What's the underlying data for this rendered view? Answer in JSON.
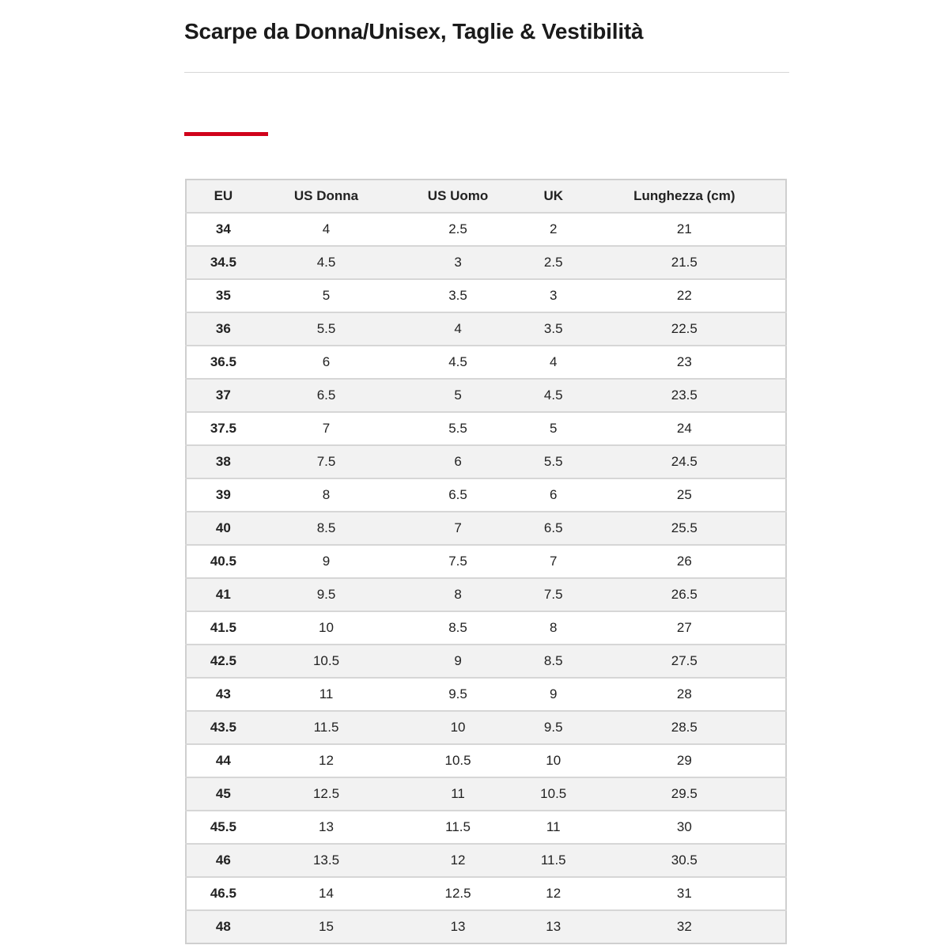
{
  "page": {
    "title": "Scarpe da Donna/Unisex, Taglie & Vestibilità",
    "accent_color": "#d0021b"
  },
  "table": {
    "headers": [
      "EU",
      "US Donna",
      "US Uomo",
      "UK",
      "Lunghezza (cm)"
    ],
    "rows": [
      [
        "34",
        "4",
        "2.5",
        "2",
        "21"
      ],
      [
        "34.5",
        "4.5",
        "3",
        "2.5",
        "21.5"
      ],
      [
        "35",
        "5",
        "3.5",
        "3",
        "22"
      ],
      [
        "36",
        "5.5",
        "4",
        "3.5",
        "22.5"
      ],
      [
        "36.5",
        "6",
        "4.5",
        "4",
        "23"
      ],
      [
        "37",
        "6.5",
        "5",
        "4.5",
        "23.5"
      ],
      [
        "37.5",
        "7",
        "5.5",
        "5",
        "24"
      ],
      [
        "38",
        "7.5",
        "6",
        "5.5",
        "24.5"
      ],
      [
        "39",
        "8",
        "6.5",
        "6",
        "25"
      ],
      [
        "40",
        "8.5",
        "7",
        "6.5",
        "25.5"
      ],
      [
        "40.5",
        "9",
        "7.5",
        "7",
        "26"
      ],
      [
        "41",
        "9.5",
        "8",
        "7.5",
        "26.5"
      ],
      [
        "41.5",
        "10",
        "8.5",
        "8",
        "27"
      ],
      [
        "42.5",
        "10.5",
        "9",
        "8.5",
        "27.5"
      ],
      [
        "43",
        "11",
        "9.5",
        "9",
        "28"
      ],
      [
        "43.5",
        "11.5",
        "10",
        "9.5",
        "28.5"
      ],
      [
        "44",
        "12",
        "10.5",
        "10",
        "29"
      ],
      [
        "45",
        "12.5",
        "11",
        "10.5",
        "29.5"
      ],
      [
        "45.5",
        "13",
        "11.5",
        "11",
        "30"
      ],
      [
        "46",
        "13.5",
        "12",
        "11.5",
        "30.5"
      ],
      [
        "46.5",
        "14",
        "12.5",
        "12",
        "31"
      ],
      [
        "48",
        "15",
        "13",
        "13",
        "32"
      ]
    ]
  }
}
